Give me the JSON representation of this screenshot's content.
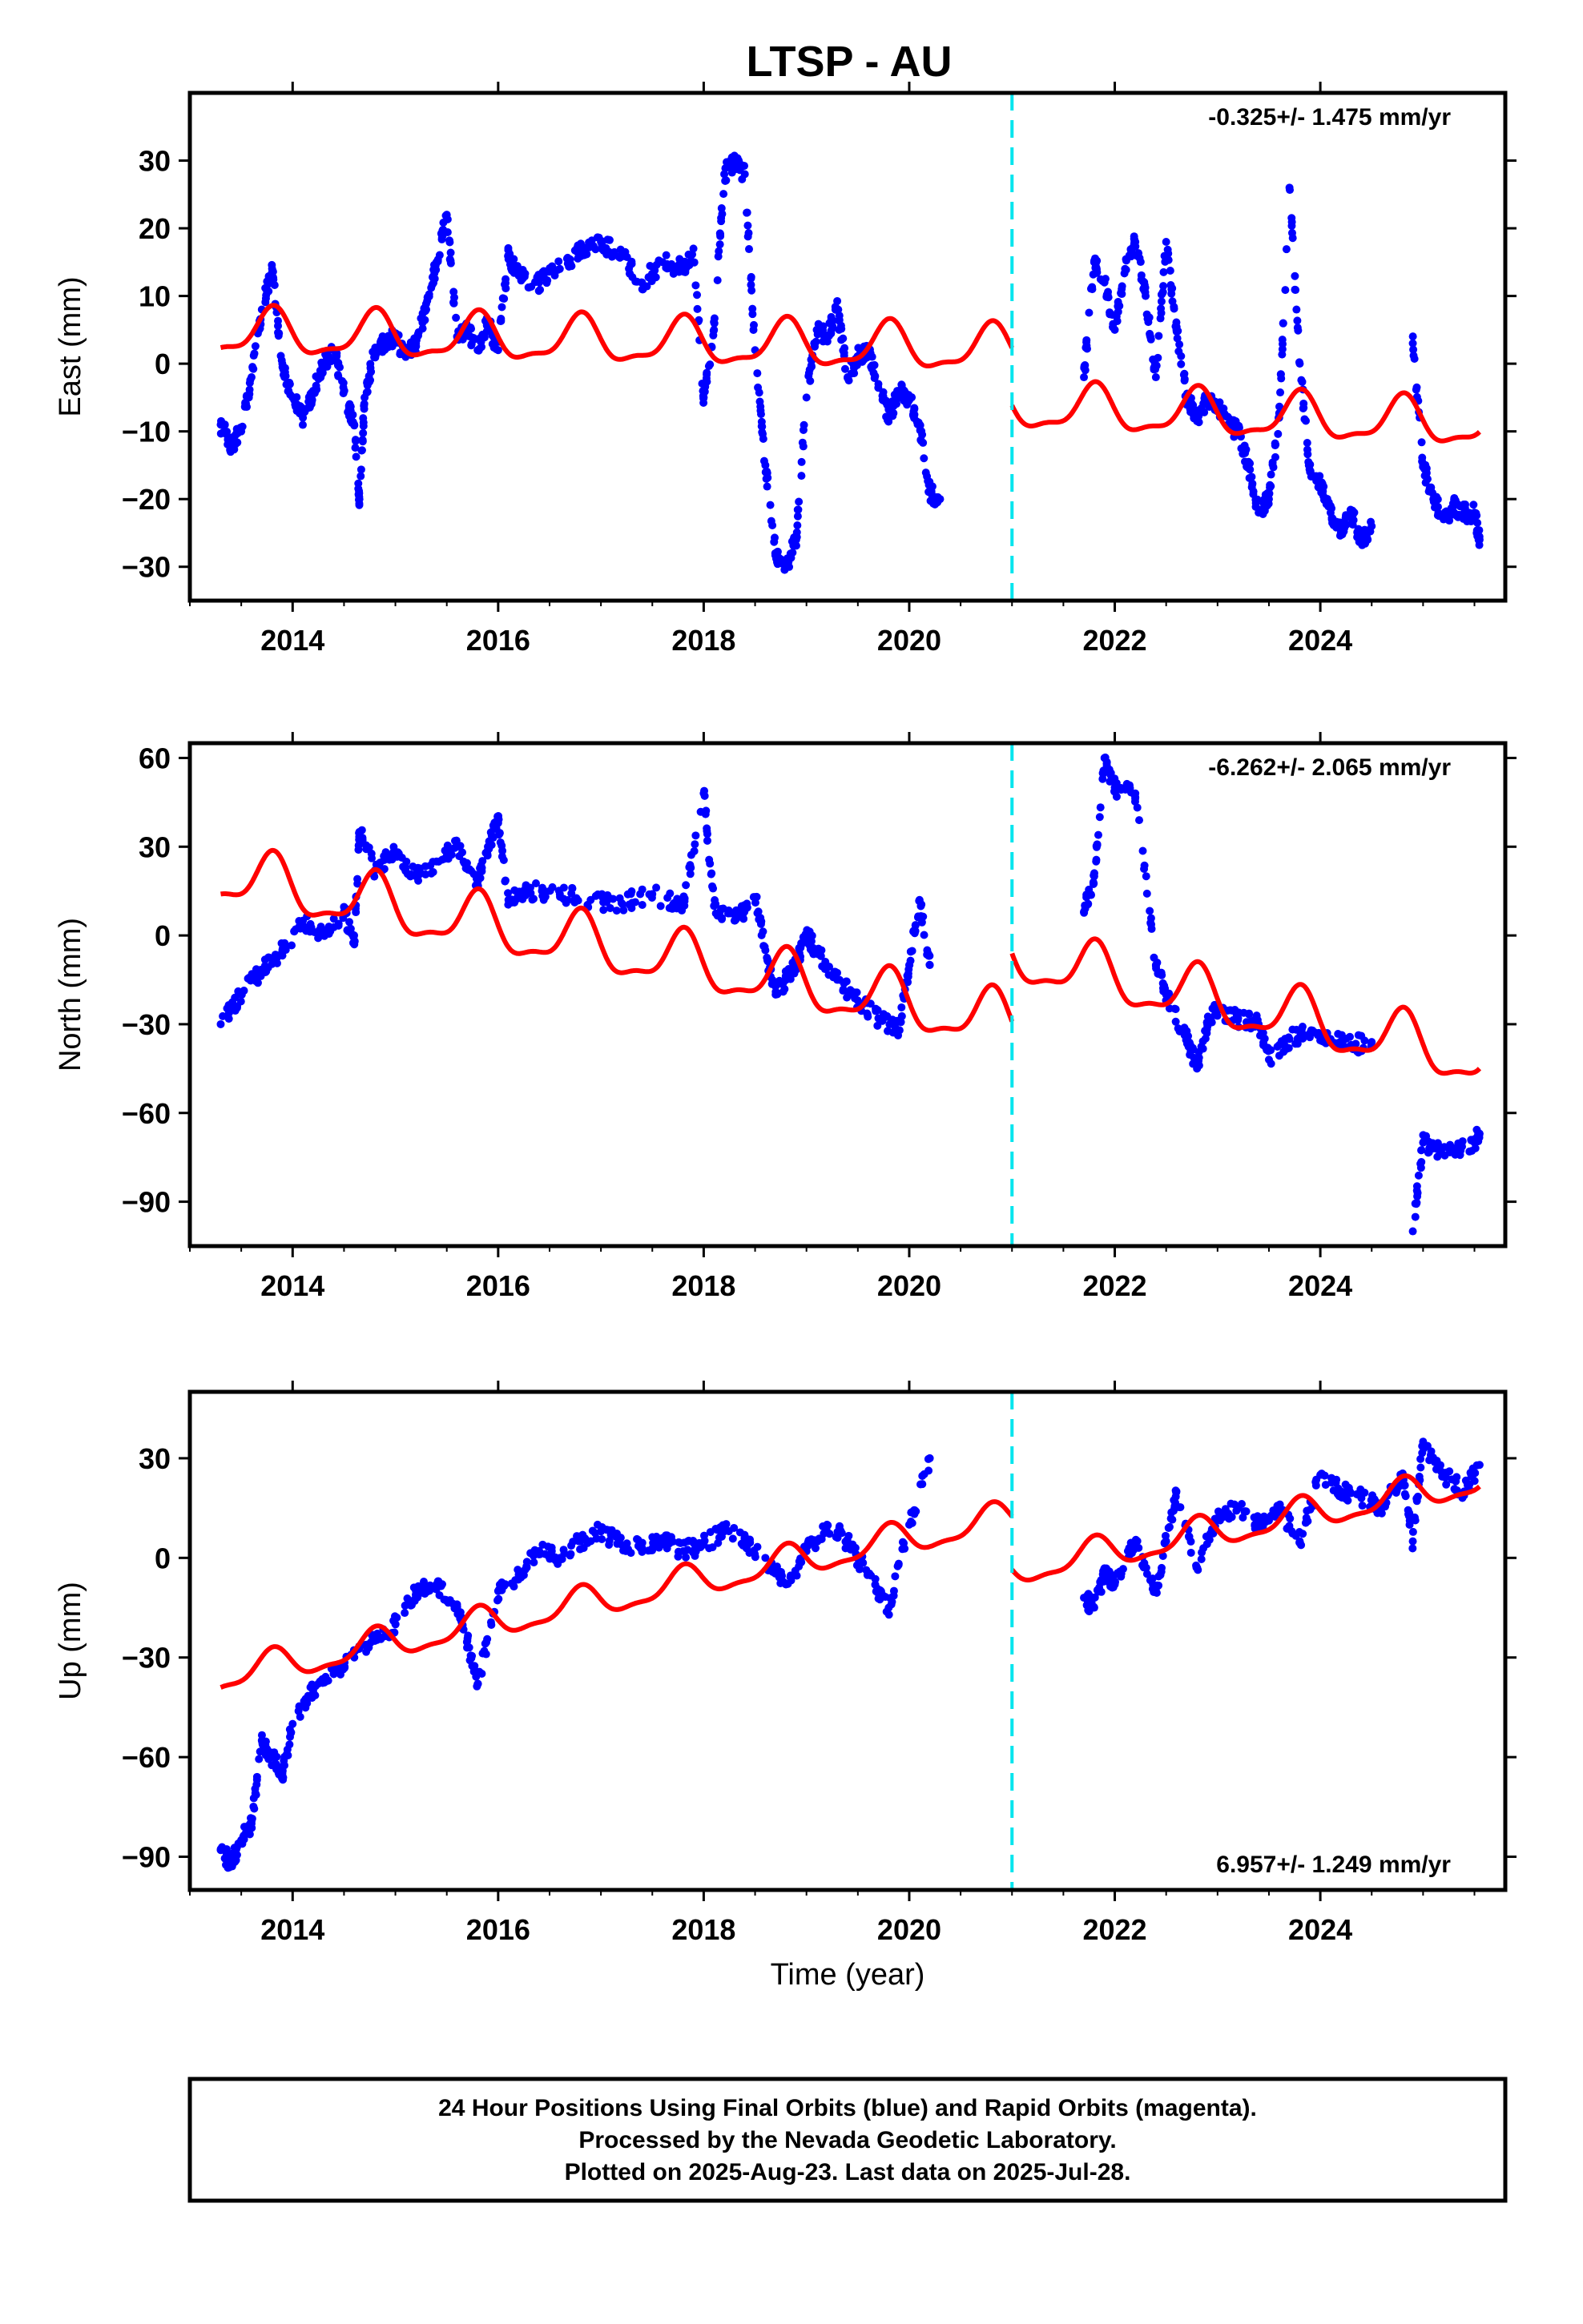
{
  "chart_data": [
    {
      "type": "scatter",
      "title": "LTSP - AU",
      "ylabel": "East (mm)",
      "xlabel": "",
      "xlim": [
        2013.0,
        2025.8
      ],
      "ylim": [
        -35,
        40
      ],
      "xticks": [
        2014,
        2016,
        2018,
        2020,
        2022,
        2024
      ],
      "xtick_labels": [
        "2014",
        "2016",
        "2018",
        "2020",
        "2022",
        "2024"
      ],
      "yticks": [
        -30,
        -20,
        -10,
        0,
        10,
        20,
        30
      ],
      "ytick_labels": [
        "−30",
        "−20",
        "−10",
        "0",
        "10",
        "20",
        "30"
      ],
      "annotation": "-0.325+/- 1.475 mm/yr",
      "annotation_position": "top-right",
      "offset_line_x": 2021.0,
      "series": [
        {
          "color": "#0000ff",
          "kind": "points",
          "x": [
            2013.3,
            2013.4,
            2013.5,
            2013.6,
            2013.7,
            2013.8,
            2013.9,
            2014.0,
            2014.1,
            2014.2,
            2014.3,
            2014.4,
            2014.5,
            2014.6,
            2014.65,
            2014.7,
            2014.8,
            2014.9,
            2015.0,
            2015.1,
            2015.2,
            2015.3,
            2015.4,
            2015.5,
            2015.6,
            2015.7,
            2015.8,
            2015.9,
            2016.0,
            2016.1,
            2016.2,
            2016.4,
            2016.6,
            2016.8,
            2017.0,
            2017.2,
            2017.4,
            2017.6,
            2017.8,
            2017.9,
            2018.0,
            2018.1,
            2018.2,
            2018.3,
            2018.4,
            2018.5,
            2018.6,
            2018.7,
            2018.8,
            2018.9,
            2019.0,
            2019.1,
            2019.2,
            2019.3,
            2019.4,
            2019.5,
            2019.6,
            2019.7,
            2019.8,
            2019.9,
            2020.0,
            2020.1,
            2020.2,
            2020.3,
            2021.7,
            2021.8,
            2021.9,
            2022.0,
            2022.1,
            2022.2,
            2022.3,
            2022.4,
            2022.5,
            2022.6,
            2022.7,
            2022.8,
            2022.9,
            2023.0,
            2023.1,
            2023.2,
            2023.3,
            2023.4,
            2023.5,
            2023.6,
            2023.7,
            2023.8,
            2023.9,
            2024.0,
            2024.1,
            2024.2,
            2024.3,
            2024.4,
            2024.5,
            2024.9,
            2025.0,
            2025.1,
            2025.2,
            2025.3,
            2025.4,
            2025.5,
            2025.55
          ],
          "y": [
            -9,
            -12,
            -10,
            -2,
            8,
            14,
            0,
            -5,
            -8,
            -4,
            0,
            2,
            -4,
            -9,
            -20,
            -5,
            2,
            3,
            4,
            1,
            3,
            8,
            15,
            22,
            4,
            5,
            2,
            6,
            2,
            16,
            13,
            12,
            14,
            17,
            18,
            16,
            12,
            15,
            14,
            17,
            -5,
            5,
            28,
            30,
            28,
            2,
            -15,
            -28,
            -30,
            -26,
            -5,
            5,
            4,
            8,
            -2,
            1,
            2,
            -3,
            -8,
            -4,
            -5,
            -9,
            -19,
            -20,
            -2,
            15,
            12,
            5,
            14,
            18,
            10,
            -2,
            18,
            5,
            -5,
            -8,
            -5,
            -6,
            -9,
            -10,
            -15,
            -22,
            -20,
            -8,
            26,
            0,
            -16,
            -18,
            -22,
            -25,
            -22,
            -26,
            -24,
            3,
            -15,
            -20,
            -23,
            -21,
            -22,
            -22,
            -26
          ]
        },
        {
          "color": "#ff0000",
          "kind": "line",
          "name": "",
          "x": [
            2013.3,
            2021.0,
            2021.0,
            2025.55
          ],
          "y": [
            4.5,
            2.0,
            -6.5,
            -9.0
          ],
          "seasonal_amplitude": 3.2
        }
      ]
    },
    {
      "type": "scatter",
      "ylabel": "North (mm)",
      "xlabel": "",
      "xlim": [
        2013.0,
        2025.8
      ],
      "ylim": [
        -105,
        65
      ],
      "xticks": [
        2014,
        2016,
        2018,
        2020,
        2022,
        2024
      ],
      "xtick_labels": [
        "2014",
        "2016",
        "2018",
        "2020",
        "2022",
        "2024"
      ],
      "yticks": [
        -90,
        -60,
        -30,
        0,
        30,
        60
      ],
      "ytick_labels": [
        "−90",
        "−60",
        "−30",
        "0",
        "30",
        "60"
      ],
      "annotation": "-6.262+/- 2.065 mm/yr",
      "annotation_position": "top-right",
      "offset_line_x": 2021.0,
      "series": [
        {
          "color": "#0000ff",
          "kind": "points",
          "x": [
            2013.3,
            2013.5,
            2013.7,
            2013.9,
            2014.1,
            2014.3,
            2014.5,
            2014.6,
            2014.65,
            2014.8,
            2015.0,
            2015.2,
            2015.4,
            2015.6,
            2015.8,
            2015.9,
            2016.0,
            2016.1,
            2016.3,
            2016.6,
            2016.9,
            2017.2,
            2017.5,
            2017.8,
            2018.0,
            2018.1,
            2018.3,
            2018.5,
            2018.6,
            2018.7,
            2018.8,
            2018.9,
            2019.0,
            2019.1,
            2019.3,
            2019.5,
            2019.7,
            2019.9,
            2020.0,
            2020.1,
            2020.2,
            2021.7,
            2021.8,
            2021.9,
            2022.0,
            2022.2,
            2022.4,
            2022.5,
            2022.7,
            2022.8,
            2022.9,
            2023.0,
            2023.2,
            2023.4,
            2023.5,
            2023.7,
            2023.9,
            2024.1,
            2024.3,
            2024.5,
            2024.9,
            2025.0,
            2025.1,
            2025.3,
            2025.5,
            2025.55
          ],
          "y": [
            -30,
            -20,
            -12,
            -5,
            5,
            0,
            8,
            -3,
            35,
            22,
            28,
            20,
            25,
            30,
            18,
            30,
            38,
            12,
            15,
            14,
            12,
            11,
            14,
            10,
            48,
            10,
            5,
            13,
            -5,
            -20,
            -15,
            -10,
            0,
            -5,
            -15,
            -22,
            -28,
            -32,
            -10,
            12,
            -10,
            8,
            20,
            60,
            50,
            48,
            -10,
            -20,
            -35,
            -45,
            -30,
            -25,
            -28,
            -30,
            -42,
            -35,
            -33,
            -35,
            -37,
            -36,
            -100,
            -70,
            -72,
            -73,
            -70,
            -67
          ]
        },
        {
          "color": "#ff0000",
          "kind": "line",
          "name": "",
          "x": [
            2013.3,
            2021.0,
            2021.0,
            2025.55
          ],
          "y": [
            20.0,
            -30.0,
            -7.0,
            -42.0
          ],
          "seasonal_amplitude": 9.0
        }
      ]
    },
    {
      "type": "scatter",
      "ylabel": "Up (mm)",
      "xlabel": "Time (year)",
      "xlim": [
        2013.0,
        2025.8
      ],
      "ylim": [
        -100,
        50
      ],
      "xticks": [
        2014,
        2016,
        2018,
        2020,
        2022,
        2024
      ],
      "xtick_labels": [
        "2014",
        "2016",
        "2018",
        "2020",
        "2022",
        "2024"
      ],
      "yticks": [
        -90,
        -60,
        -30,
        0,
        30
      ],
      "ytick_labels": [
        "−90",
        "−60",
        "−30",
        "0",
        "30"
      ],
      "annotation": "6.957+/- 1.249 mm/yr",
      "annotation_position": "bottom-right",
      "offset_line_x": 2021.0,
      "series": [
        {
          "color": "#0000ff",
          "kind": "points",
          "x": [
            2013.3,
            2013.4,
            2013.5,
            2013.6,
            2013.7,
            2013.8,
            2013.9,
            2014.0,
            2014.2,
            2014.4,
            2014.6,
            2014.8,
            2015.0,
            2015.2,
            2015.4,
            2015.6,
            2015.7,
            2015.8,
            2016.0,
            2016.2,
            2016.4,
            2016.6,
            2016.8,
            2017.0,
            2017.2,
            2017.4,
            2017.6,
            2017.8,
            2018.0,
            2018.2,
            2018.4,
            2018.6,
            2018.8,
            2019.0,
            2019.2,
            2019.4,
            2019.6,
            2019.8,
            2020.0,
            2020.2,
            2021.7,
            2021.8,
            2021.9,
            2022.0,
            2022.2,
            2022.4,
            2022.5,
            2022.6,
            2022.8,
            2023.0,
            2023.2,
            2023.4,
            2023.6,
            2023.8,
            2024.0,
            2024.2,
            2024.4,
            2024.6,
            2024.8,
            2024.9,
            2025.0,
            2025.2,
            2025.4,
            2025.55
          ],
          "y": [
            -88,
            -92,
            -85,
            -80,
            -55,
            -60,
            -65,
            -50,
            -40,
            -35,
            -30,
            -25,
            -20,
            -10,
            -8,
            -15,
            -25,
            -38,
            -10,
            -5,
            2,
            0,
            5,
            8,
            4,
            3,
            6,
            2,
            4,
            8,
            5,
            0,
            -8,
            2,
            10,
            5,
            -5,
            -15,
            10,
            30,
            -12,
            -15,
            -5,
            -8,
            5,
            -10,
            5,
            20,
            -3,
            12,
            15,
            10,
            15,
            5,
            25,
            20,
            18,
            15,
            25,
            5,
            35,
            25,
            20,
            28
          ]
        },
        {
          "color": "#ff0000",
          "kind": "line",
          "name": "",
          "x": [
            2013.3,
            2021.0,
            2021.0,
            2025.55
          ],
          "y": [
            -36.0,
            12.0,
            -4.0,
            23.0
          ],
          "seasonal_amplitude": 4.5
        }
      ]
    }
  ],
  "footer": {
    "line1": "24 Hour Positions Using Final Orbits (blue) and Rapid Orbits (magenta).",
    "line2": "Processed by the Nevada Geodetic Laboratory.",
    "line3": "Plotted on 2025-Aug-23. Last data on 2025-Jul-28."
  },
  "colors": {
    "data": "#0000ff",
    "model": "#ff0000",
    "offset": "#00e5ee"
  }
}
